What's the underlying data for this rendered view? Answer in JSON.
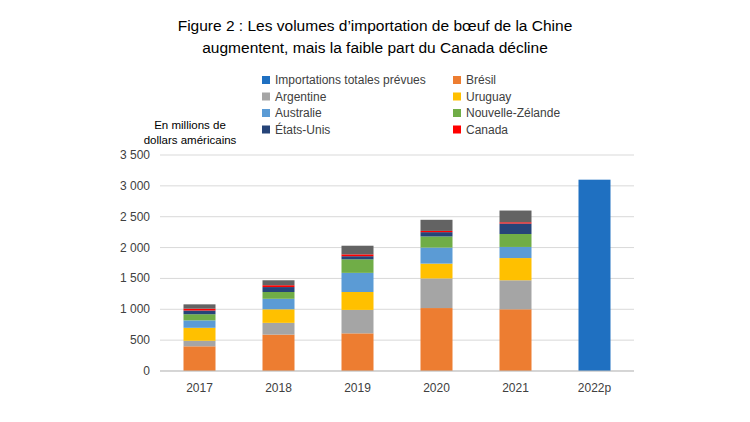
{
  "chart_data": {
    "type": "bar",
    "stacked": true,
    "title": [
      "Figure 2 : Les volumes d’importation de bœuf de la Chine",
      "augmentent, mais la faible part du Canada décline"
    ],
    "ylabel": [
      "En millions de",
      "dollars américains"
    ],
    "categories": [
      "2017",
      "2018",
      "2019",
      "2020",
      "2021",
      "2022p"
    ],
    "ylim": [
      0,
      3500
    ],
    "yticks": [
      0,
      500,
      {
        "value": 1000,
        "label": "1 000"
      },
      {
        "value": 1500,
        "label": "1 500"
      },
      {
        "value": 2000,
        "label": "2 000"
      },
      {
        "value": 2500,
        "label": "2 500"
      },
      {
        "value": 3000,
        "label": "3 000"
      },
      {
        "value": 3500,
        "label": "3 500"
      }
    ],
    "grid": true,
    "legend": "top",
    "series": [
      {
        "name": "Importations totales prévues",
        "color": "#1f70c1",
        "values": [
          null,
          null,
          null,
          null,
          null,
          3100
        ]
      },
      {
        "name": "Brésil",
        "color": "#ed7d31",
        "values": [
          400,
          590,
          610,
          1020,
          1000,
          null
        ]
      },
      {
        "name": "Argentine",
        "color": "#a5a5a5",
        "values": [
          90,
          190,
          380,
          480,
          470,
          null
        ]
      },
      {
        "name": "Uruguay",
        "color": "#ffc000",
        "values": [
          210,
          220,
          290,
          240,
          360,
          null
        ]
      },
      {
        "name": "Australie",
        "color": "#5b9bd5",
        "values": [
          120,
          170,
          310,
          260,
          180,
          null
        ]
      },
      {
        "name": "Nouvelle-Zélande",
        "color": "#70ad47",
        "values": [
          100,
          110,
          220,
          180,
          210,
          null
        ]
      },
      {
        "name": "États-Unis",
        "color": "#264478",
        "values": [
          60,
          80,
          50,
          70,
          170,
          null
        ]
      },
      {
        "name": "Canada",
        "color": "#ff0000",
        "values": [
          30,
          30,
          30,
          20,
          20,
          null
        ]
      },
      {
        "name": null,
        "color": "#636363",
        "values": [
          70,
          80,
          140,
          180,
          190,
          null
        ]
      }
    ]
  }
}
